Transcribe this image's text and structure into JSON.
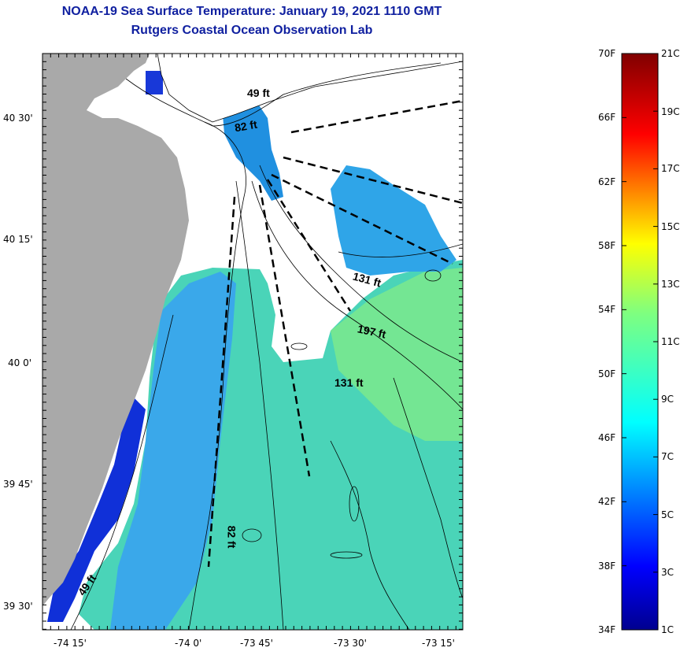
{
  "title": {
    "line1": "NOAA-19 Sea Surface Temperature:  January 19, 2021 1110 GMT",
    "line2": "Rutgers Coastal Ocean Observation Lab"
  },
  "axes": {
    "lat_labels": [
      "40 30'",
      "40 15'",
      "40 0'",
      "39 45'",
      "39 30'"
    ],
    "lon_labels": [
      "-74 15'",
      "-74 0'",
      "-73 45'",
      "-73 30'",
      "-73 15'"
    ]
  },
  "contour_labels": [
    "49 ft",
    "82 ft",
    "131 ft",
    "197 ft",
    "131 ft",
    "82 ft",
    "49 ft"
  ],
  "colorbar": {
    "fahrenheit": [
      "70F",
      "66F",
      "62F",
      "58F",
      "54F",
      "50F",
      "46F",
      "42F",
      "38F",
      "34F"
    ],
    "celsius": [
      "21C",
      "19C",
      "17C",
      "15C",
      "13C",
      "11C",
      "9C",
      "7C",
      "5C",
      "3C",
      "1C"
    ]
  },
  "colors": {
    "land": "#a9a9a9",
    "cloud": "#ffffff",
    "title": "#1020a0"
  }
}
